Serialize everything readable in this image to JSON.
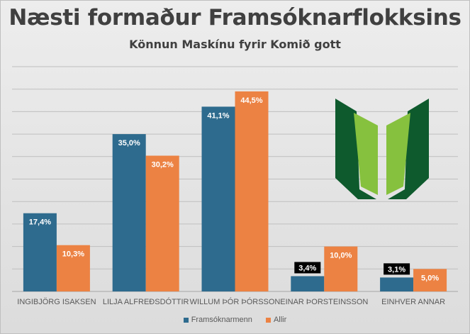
{
  "colors": {
    "series_0": "#2e6b8e",
    "series_1": "#ec8243",
    "logo_dark": "#0e5a2d",
    "logo_light": "#86c13e"
  },
  "chart_data": {
    "type": "bar",
    "title": "Næsti formaður Framsóknarflokksins",
    "subtitle": "Könnun Maskínu fyrir Komið gott",
    "categories": [
      "INGIBJÖRG ISAKSEN",
      "LILJA ALFREÐSDÓTTIR",
      "WILLUM ÞÓR ÞÓRSSON",
      "EINAR ÞORSTEINSSON",
      "EINHVER ANNAR"
    ],
    "series": [
      {
        "name": "Framsóknarmenn",
        "values": [
          17.4,
          35.0,
          41.1,
          3.4,
          3.1
        ],
        "labels": [
          "17,4%",
          "35,0%",
          "41,1%",
          "3,4%",
          "3,1%"
        ]
      },
      {
        "name": "Allir",
        "values": [
          10.3,
          30.2,
          44.5,
          10.0,
          5.0
        ],
        "labels": [
          "10,3%",
          "30,2%",
          "44,5%",
          "10,0%",
          "5,0%"
        ]
      }
    ],
    "ylim": [
      0,
      50
    ],
    "grid": true,
    "legend": "bottom"
  }
}
